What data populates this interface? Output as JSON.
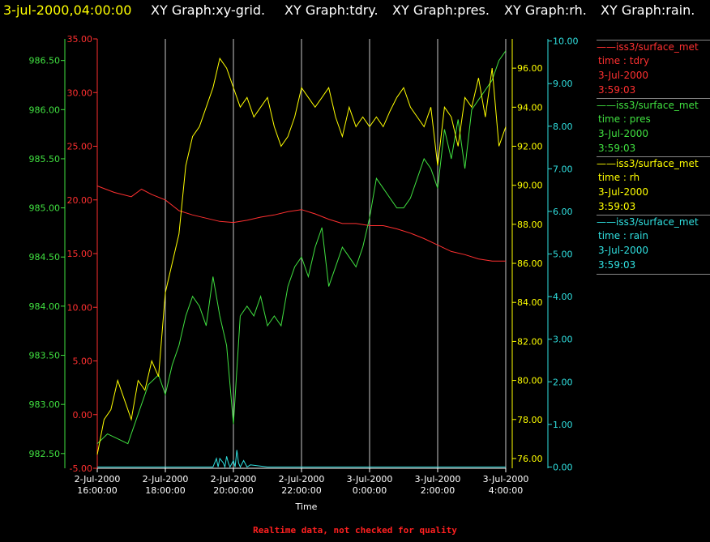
{
  "header": {
    "timestamp": "3-jul-2000,04:00:00",
    "graphs": [
      "XY Graph:xy-grid.",
      "XY Graph:tdry.",
      "XY Graph:pres.",
      "XY Graph:rh.",
      "XY Graph:rain."
    ]
  },
  "legend": [
    {
      "source": "iss3/surface_met",
      "field": "time : tdry",
      "date": "3-Jul-2000",
      "time": "3:59:03",
      "color": "#ff3030"
    },
    {
      "source": "iss3/surface_met",
      "field": "time : pres",
      "date": "3-Jul-2000",
      "time": "3:59:03",
      "color": "#40e040"
    },
    {
      "source": "iss3/surface_met",
      "field": "time : rh",
      "date": "3-Jul-2000",
      "time": "3:59:03",
      "color": "#ffff00"
    },
    {
      "source": "iss3/surface_met",
      "field": "time : rain",
      "date": "3-Jul-2000",
      "time": "3:59:03",
      "color": "#30e0e0"
    }
  ],
  "footer": "Realtime data, not checked for quality",
  "chart_data": {
    "type": "line",
    "xlabel": "Time",
    "x_ticks": [
      {
        "date": "2-Jul-2000",
        "time": "16:00:00",
        "h": 16
      },
      {
        "date": "2-Jul-2000",
        "time": "18:00:00",
        "h": 18
      },
      {
        "date": "2-Jul-2000",
        "time": "20:00:00",
        "h": 20
      },
      {
        "date": "2-Jul-2000",
        "time": "22:00:00",
        "h": 22
      },
      {
        "date": "3-Jul-2000",
        "time": "0:00:00",
        "h": 24
      },
      {
        "date": "3-Jul-2000",
        "time": "2:00:00",
        "h": 26
      },
      {
        "date": "3-Jul-2000",
        "time": "4:00:00",
        "h": 28
      }
    ],
    "xlim_hours": [
      16,
      28
    ],
    "grid": "vertical",
    "axes": {
      "tdry": {
        "color": "#ff3030",
        "range": [
          -5,
          35
        ],
        "ticks": [
          "-5.00",
          "0.00",
          "5.00",
          "10.00",
          "15.00",
          "20.00",
          "25.00",
          "30.00",
          "35.00"
        ]
      },
      "pres": {
        "color": "#40e040",
        "range": [
          982.35,
          986.72
        ],
        "ticks": [
          "982.50",
          "983.00",
          "983.50",
          "984.00",
          "984.50",
          "985.00",
          "985.50",
          "986.00",
          "986.50"
        ]
      },
      "rh": {
        "color": "#ffff00",
        "range": [
          75.5,
          97.5
        ],
        "ticks": [
          "76.00",
          "78.00",
          "80.00",
          "82.00",
          "84.00",
          "86.00",
          "88.00",
          "90.00",
          "92.00",
          "94.00",
          "96.00"
        ]
      },
      "rain": {
        "color": "#30e0e0",
        "range": [
          -0.03,
          10.05
        ],
        "ticks": [
          "0.00",
          "1.00",
          "2.00",
          "3.00",
          "4.00",
          "5.00",
          "6.00",
          "7.00",
          "8.00",
          "9.00",
          "10.00"
        ]
      }
    },
    "series": [
      {
        "name": "tdry",
        "axis": "tdry",
        "x": [
          16.0,
          16.5,
          17.0,
          17.3,
          17.6,
          18.0,
          18.4,
          18.8,
          19.2,
          19.6,
          20.0,
          20.4,
          20.8,
          21.2,
          21.6,
          22.0,
          22.4,
          22.8,
          23.2,
          23.6,
          24.0,
          24.4,
          24.8,
          25.2,
          25.6,
          26.0,
          26.4,
          26.8,
          27.2,
          27.6,
          28.0
        ],
        "y": [
          21.3,
          20.7,
          20.3,
          21.0,
          20.5,
          20.0,
          19.0,
          18.6,
          18.3,
          18.0,
          17.9,
          18.1,
          18.4,
          18.6,
          18.9,
          19.1,
          18.7,
          18.2,
          17.8,
          17.8,
          17.6,
          17.6,
          17.3,
          16.9,
          16.4,
          15.8,
          15.2,
          14.9,
          14.5,
          14.3,
          14.3
        ]
      },
      {
        "name": "pres",
        "axis": "pres",
        "x": [
          16.0,
          16.3,
          16.6,
          16.9,
          17.2,
          17.5,
          17.8,
          18.0,
          18.2,
          18.4,
          18.6,
          18.8,
          19.0,
          19.2,
          19.4,
          19.6,
          19.8,
          20.0,
          20.2,
          20.4,
          20.6,
          20.8,
          21.0,
          21.2,
          21.4,
          21.6,
          21.8,
          22.0,
          22.2,
          22.4,
          22.6,
          22.8,
          23.0,
          23.2,
          23.4,
          23.6,
          23.8,
          24.0,
          24.2,
          24.4,
          24.6,
          24.8,
          25.0,
          25.2,
          25.4,
          25.6,
          25.8,
          26.0,
          26.2,
          26.4,
          26.6,
          26.8,
          27.0,
          27.2,
          27.4,
          27.6,
          27.8,
          28.0
        ],
        "y": [
          982.6,
          982.7,
          982.65,
          982.6,
          982.9,
          983.2,
          983.3,
          983.1,
          983.4,
          983.6,
          983.9,
          984.1,
          984.0,
          983.8,
          984.3,
          983.9,
          983.6,
          982.8,
          983.9,
          984.0,
          983.9,
          984.1,
          983.8,
          983.9,
          983.8,
          984.2,
          984.4,
          984.5,
          984.3,
          984.6,
          984.8,
          984.2,
          984.4,
          984.6,
          984.5,
          984.4,
          984.6,
          984.9,
          985.3,
          985.2,
          985.1,
          985.0,
          985.0,
          985.1,
          985.3,
          985.5,
          985.4,
          985.2,
          985.8,
          985.5,
          985.9,
          985.4,
          986.0,
          986.1,
          986.2,
          986.3,
          986.5,
          986.6
        ]
      },
      {
        "name": "rh",
        "axis": "rh",
        "x": [
          16.0,
          16.2,
          16.4,
          16.6,
          16.8,
          17.0,
          17.2,
          17.4,
          17.6,
          17.8,
          18.0,
          18.2,
          18.4,
          18.6,
          18.8,
          19.0,
          19.2,
          19.4,
          19.6,
          19.8,
          20.0,
          20.2,
          20.4,
          20.6,
          20.8,
          21.0,
          21.2,
          21.4,
          21.6,
          21.8,
          22.0,
          22.2,
          22.4,
          22.6,
          22.8,
          23.0,
          23.2,
          23.4,
          23.6,
          23.8,
          24.0,
          24.2,
          24.4,
          24.6,
          24.8,
          25.0,
          25.2,
          25.4,
          25.6,
          25.8,
          26.0,
          26.2,
          26.4,
          26.6,
          26.8,
          27.0,
          27.2,
          27.4,
          27.6,
          27.8,
          28.0
        ],
        "y": [
          76.2,
          78.0,
          78.5,
          80.0,
          79.0,
          78.0,
          80.0,
          79.5,
          81.0,
          80.2,
          84.5,
          86.0,
          87.5,
          91.0,
          92.5,
          93.0,
          94.0,
          95.0,
          96.5,
          96.0,
          95.0,
          94.0,
          94.5,
          93.5,
          94.0,
          94.5,
          93.0,
          92.0,
          92.5,
          93.5,
          95.0,
          94.5,
          94.0,
          94.5,
          95.0,
          93.5,
          92.5,
          94.0,
          93.0,
          93.5,
          93.0,
          93.5,
          93.0,
          93.8,
          94.5,
          95.0,
          94.0,
          93.5,
          93.0,
          94.0,
          91.0,
          94.0,
          93.5,
          92.0,
          94.5,
          94.0,
          95.5,
          93.5,
          96.0,
          92.0,
          93.0
        ]
      },
      {
        "name": "rain",
        "axis": "rain",
        "x": [
          16.0,
          19.4,
          19.5,
          19.55,
          19.6,
          19.7,
          19.75,
          19.8,
          19.85,
          19.9,
          20.0,
          20.05,
          20.1,
          20.15,
          20.2,
          20.3,
          20.4,
          20.5,
          21.0,
          28.0
        ],
        "y": [
          0.0,
          0.0,
          0.2,
          0.0,
          0.2,
          0.1,
          0.0,
          0.25,
          0.1,
          0.0,
          0.15,
          0.0,
          0.4,
          0.1,
          0.0,
          0.15,
          0.0,
          0.05,
          0.0,
          0.0
        ]
      }
    ]
  }
}
